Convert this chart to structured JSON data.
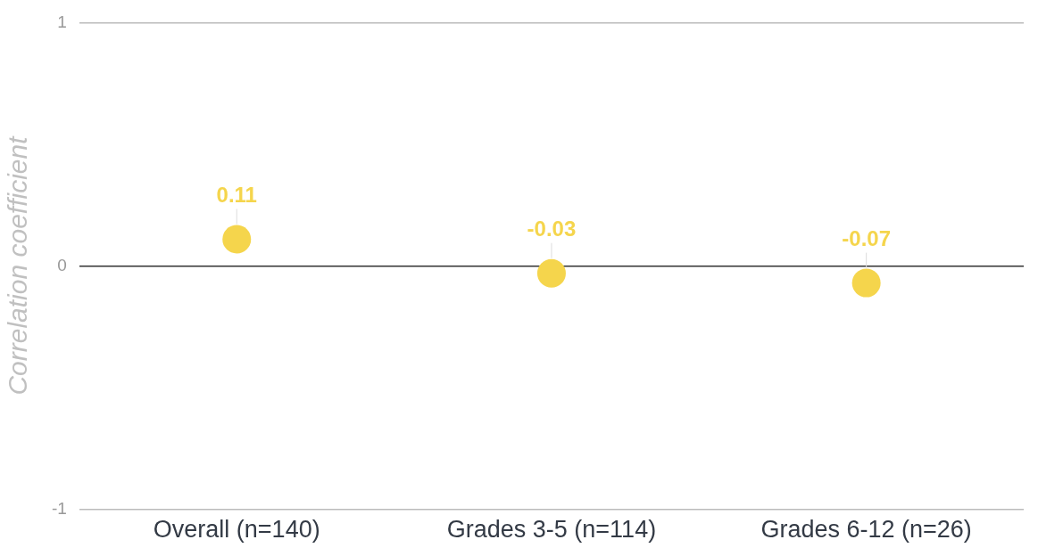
{
  "chart_data": {
    "type": "scatter",
    "ylabel": "Correlation coefficient",
    "categories": [
      "Overall (n=140)",
      "Grades 3-5 (n=114)",
      "Grades 6-12 (n=26)"
    ],
    "values": [
      0.11,
      -0.03,
      -0.07
    ],
    "color": "#f5d54c",
    "marker": "circle",
    "data_labels": true,
    "ylim": [
      -1,
      1
    ],
    "yticks": [
      -1,
      0,
      1
    ],
    "grid": "y"
  }
}
